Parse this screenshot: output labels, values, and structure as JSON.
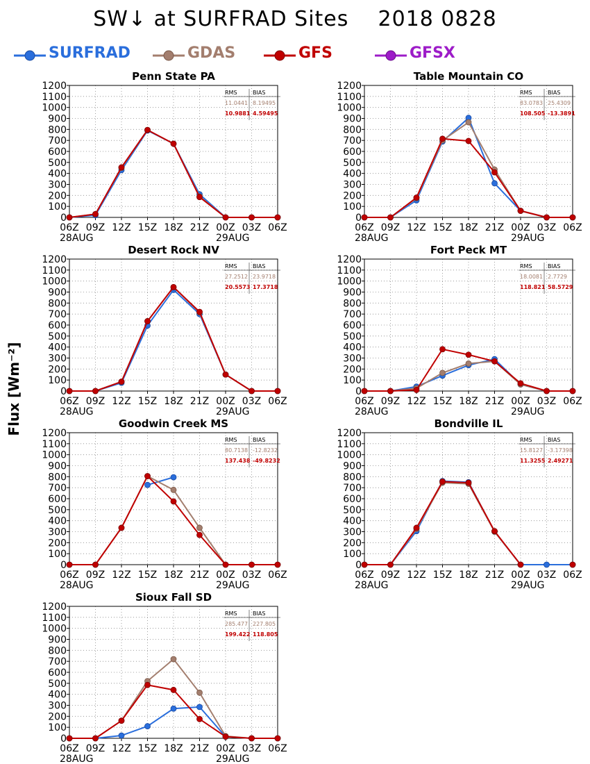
{
  "title": "SW↓ at SURFRAD Sites    2018 0828",
  "ylabel": "Flux [Wm⁻²]",
  "legend": [
    {
      "name": "SURFRAD",
      "color": "#2a6edc"
    },
    {
      "name": "GDAS",
      "color": "#a37e6e"
    },
    {
      "name": "GFS",
      "color": "#c00000"
    },
    {
      "name": "GFSX",
      "color": "#9d1cc8"
    }
  ],
  "stats_headers": {
    "rms": "RMS",
    "bias": "BIAS"
  },
  "chart_data": [
    {
      "type": "line",
      "title": "Penn State PA",
      "x": [
        "06Z",
        "09Z",
        "12Z",
        "15Z",
        "18Z",
        "21Z",
        "00Z",
        "03Z",
        "06Z"
      ],
      "date_labels": [
        "28AUG",
        "29AUG"
      ],
      "ylim": [
        0,
        1200
      ],
      "yticks": [
        0,
        100,
        200,
        300,
        400,
        500,
        600,
        700,
        800,
        900,
        1000,
        1100,
        1200
      ],
      "stats": {
        "GDAS": {
          "rms": "11.0441",
          "bias": "8.19495"
        },
        "GFS": {
          "rms": "10.9881",
          "bias": "4.59495"
        }
      },
      "series": [
        {
          "name": "SURFRAD",
          "values": [
            0,
            20,
            430,
            790,
            670,
            210,
            0,
            0,
            0
          ]
        },
        {
          "name": "GDAS",
          "values": [
            0,
            30,
            450,
            795,
            670,
            190,
            0,
            0,
            0
          ]
        },
        {
          "name": "GFS",
          "values": [
            0,
            30,
            455,
            795,
            670,
            185,
            0,
            0,
            0
          ]
        }
      ]
    },
    {
      "type": "line",
      "title": "Table Mountain CO",
      "x": [
        "06Z",
        "09Z",
        "12Z",
        "15Z",
        "18Z",
        "21Z",
        "00Z",
        "03Z",
        "06Z"
      ],
      "date_labels": [
        "28AUG",
        "29AUG"
      ],
      "ylim": [
        0,
        1200
      ],
      "yticks": [
        0,
        100,
        200,
        300,
        400,
        500,
        600,
        700,
        800,
        900,
        1000,
        1100,
        1200
      ],
      "stats": {
        "GDAS": {
          "rms": "83.0783",
          "bias": "25.4309"
        },
        "GFS": {
          "rms": "108.505",
          "bias": "-13.3891"
        }
      },
      "series": [
        {
          "name": "SURFRAD",
          "values": [
            0,
            0,
            155,
            690,
            905,
            310,
            60,
            0,
            0
          ]
        },
        {
          "name": "GDAS",
          "values": [
            0,
            0,
            175,
            700,
            865,
            435,
            60,
            0,
            0
          ]
        },
        {
          "name": "GFS",
          "values": [
            0,
            0,
            180,
            715,
            695,
            410,
            60,
            0,
            0
          ]
        }
      ]
    },
    {
      "type": "line",
      "title": "Desert Rock NV",
      "x": [
        "06Z",
        "09Z",
        "12Z",
        "15Z",
        "18Z",
        "21Z",
        "00Z",
        "03Z",
        "06Z"
      ],
      "date_labels": [
        "28AUG",
        "29AUG"
      ],
      "ylim": [
        0,
        1200
      ],
      "yticks": [
        0,
        100,
        200,
        300,
        400,
        500,
        600,
        700,
        800,
        900,
        1000,
        1100,
        1200
      ],
      "stats": {
        "GDAS": {
          "rms": "27.2512",
          "bias": "23.9718"
        },
        "GFS": {
          "rms": "20.5573",
          "bias": "17.3718"
        }
      },
      "series": [
        {
          "name": "SURFRAD",
          "values": [
            0,
            0,
            75,
            595,
            920,
            700,
            150,
            0,
            0
          ]
        },
        {
          "name": "GDAS",
          "values": [
            0,
            0,
            85,
            635,
            945,
            715,
            150,
            0,
            0
          ]
        },
        {
          "name": "GFS",
          "values": [
            0,
            0,
            85,
            635,
            945,
            720,
            150,
            0,
            0
          ]
        }
      ]
    },
    {
      "type": "line",
      "title": "Fort Peck MT",
      "x": [
        "06Z",
        "09Z",
        "12Z",
        "15Z",
        "18Z",
        "21Z",
        "00Z",
        "03Z",
        "06Z"
      ],
      "date_labels": [
        "28AUG",
        "29AUG"
      ],
      "ylim": [
        0,
        1200
      ],
      "yticks": [
        0,
        100,
        200,
        300,
        400,
        500,
        600,
        700,
        800,
        900,
        1000,
        1100,
        1200
      ],
      "stats": {
        "GDAS": {
          "rms": "18.0081",
          "bias": "2.7729"
        },
        "GFS": {
          "rms": "118.821",
          "bias": "58.5729"
        }
      },
      "series": [
        {
          "name": "SURFRAD",
          "values": [
            0,
            0,
            40,
            140,
            235,
            290,
            60,
            0,
            0
          ]
        },
        {
          "name": "GDAS",
          "values": [
            0,
            0,
            25,
            165,
            250,
            270,
            60,
            0,
            0
          ]
        },
        {
          "name": "GFS",
          "values": [
            0,
            0,
            10,
            380,
            330,
            270,
            70,
            0,
            0
          ]
        }
      ]
    },
    {
      "type": "line",
      "title": "Goodwin Creek MS",
      "x": [
        "06Z",
        "09Z",
        "12Z",
        "15Z",
        "18Z",
        "21Z",
        "00Z",
        "03Z",
        "06Z"
      ],
      "date_labels": [
        "28AUG",
        "29AUG"
      ],
      "ylim": [
        0,
        1200
      ],
      "yticks": [
        0,
        100,
        200,
        300,
        400,
        500,
        600,
        700,
        800,
        900,
        1000,
        1100,
        1200
      ],
      "stats": {
        "GDAS": {
          "rms": "80.7138",
          "bias": "-12.8232"
        },
        "GFS": {
          "rms": "137.438",
          "bias": "-49.8232"
        }
      },
      "series": [
        {
          "name": "SURFRAD",
          "values": [
            0,
            0,
            null,
            725,
            795,
            null,
            null,
            null,
            null
          ]
        },
        {
          "name": "GDAS",
          "values": [
            0,
            0,
            335,
            805,
            680,
            335,
            0,
            0,
            0
          ]
        },
        {
          "name": "GFS",
          "values": [
            0,
            0,
            335,
            805,
            575,
            270,
            0,
            0,
            0
          ]
        }
      ]
    },
    {
      "type": "line",
      "title": "Bondville IL",
      "x": [
        "06Z",
        "09Z",
        "12Z",
        "15Z",
        "18Z",
        "21Z",
        "00Z",
        "03Z",
        "06Z"
      ],
      "date_labels": [
        "28AUG",
        "29AUG"
      ],
      "ylim": [
        0,
        1200
      ],
      "yticks": [
        0,
        100,
        200,
        300,
        400,
        500,
        600,
        700,
        800,
        900,
        1000,
        1100,
        1200
      ],
      "stats": {
        "GDAS": {
          "rms": "15.8127",
          "bias": "-3.17398"
        },
        "GFS": {
          "rms": "11.3255",
          "bias": "2.49271"
        }
      },
      "series": [
        {
          "name": "SURFRAD",
          "values": [
            0,
            0,
            305,
            760,
            750,
            300,
            0,
            0,
            0
          ]
        },
        {
          "name": "GDAS",
          "values": [
            0,
            0,
            325,
            745,
            735,
            300,
            0,
            null,
            0
          ]
        },
        {
          "name": "GFS",
          "values": [
            0,
            0,
            335,
            755,
            745,
            305,
            0,
            null,
            0
          ]
        }
      ]
    },
    {
      "type": "line",
      "title": "Sioux Fall SD",
      "x": [
        "06Z",
        "09Z",
        "12Z",
        "15Z",
        "18Z",
        "21Z",
        "00Z",
        "03Z",
        "06Z"
      ],
      "date_labels": [
        "28AUG",
        "29AUG"
      ],
      "ylim": [
        0,
        1200
      ],
      "yticks": [
        0,
        100,
        200,
        300,
        400,
        500,
        600,
        700,
        800,
        900,
        1000,
        1100,
        1200
      ],
      "stats": {
        "GDAS": {
          "rms": "285.477",
          "bias": "227.805"
        },
        "GFS": {
          "rms": "199.422",
          "bias": "118.805"
        }
      },
      "series": [
        {
          "name": "SURFRAD",
          "values": [
            0,
            0,
            25,
            110,
            270,
            285,
            15,
            0,
            0
          ]
        },
        {
          "name": "GDAS",
          "values": [
            0,
            0,
            160,
            520,
            720,
            415,
            20,
            0,
            0
          ]
        },
        {
          "name": "GFS",
          "values": [
            0,
            0,
            160,
            485,
            440,
            175,
            15,
            0,
            0
          ]
        }
      ]
    }
  ]
}
